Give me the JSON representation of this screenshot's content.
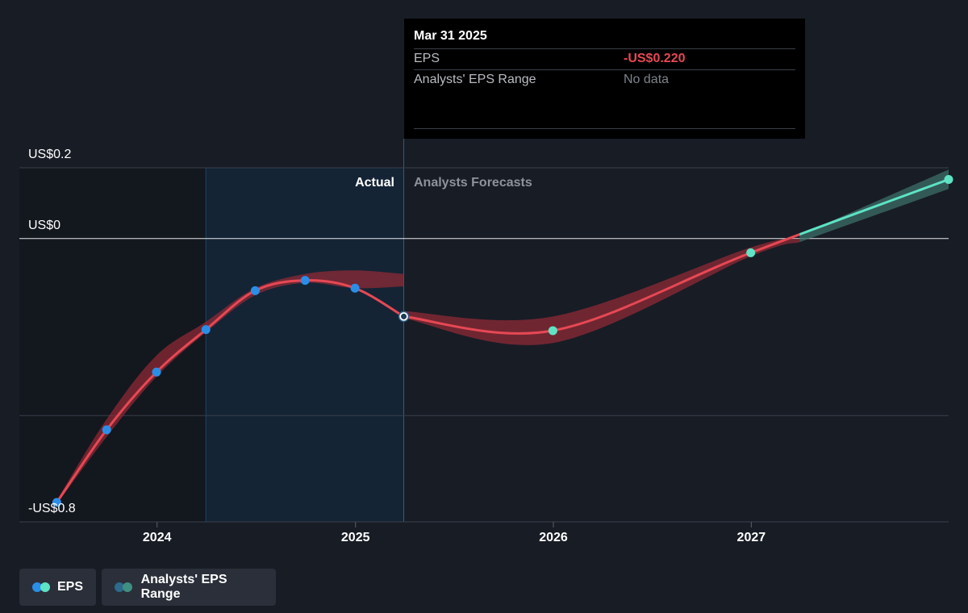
{
  "tooltip": {
    "date": "Mar 31 2025",
    "rows": [
      {
        "label": "EPS",
        "value": "-US$0.220"
      },
      {
        "label": "Analysts' EPS Range",
        "value": "No data"
      }
    ]
  },
  "legend": {
    "items": [
      {
        "label": "EPS",
        "colors": [
          "#2b8ee6",
          "#5ee3c4"
        ]
      },
      {
        "label": "Analysts' EPS Range",
        "colors": [
          "#2d6a8c",
          "#3f8f82"
        ]
      }
    ]
  },
  "colors": {
    "background": "#181c25",
    "actual_line": "#e64854",
    "forecast_line": "#5ee3c4",
    "actual_dot": "#2b8ee6",
    "forecast_dot": "#5ee3c4",
    "actual_band": "#8e2a36",
    "forecast_band": "#3c6e68",
    "highlight_region": "#142536"
  },
  "chart_data": {
    "type": "line",
    "section_labels": {
      "actual": "Actual",
      "forecast": "Analysts Forecasts"
    },
    "y_tick_labels": [
      {
        "value": 0.2,
        "label": "US$0.2"
      },
      {
        "value": 0,
        "label": "US$0"
      },
      {
        "value": -0.8,
        "label": "-US$0.8"
      }
    ],
    "x_tick_labels": [
      {
        "value": "2024-01-01",
        "label": "2024"
      },
      {
        "value": "2025-01-01",
        "label": "2025"
      },
      {
        "value": "2026-01-01",
        "label": "2026"
      },
      {
        "value": "2027-01-01",
        "label": "2027"
      }
    ],
    "x_range": [
      "2023-04-22",
      "2027-12-31"
    ],
    "y_range": [
      -0.8,
      0.2
    ],
    "grid_lines": [
      0.2,
      0,
      -0.5
    ],
    "highlight_region": [
      "2024-03-31",
      "2025-03-31"
    ],
    "cursor_date": "2025-03-31",
    "series": [
      {
        "name": "EPS",
        "kind": "actual",
        "x": [
          "2023-06-30",
          "2023-09-30",
          "2023-12-31",
          "2024-03-31",
          "2024-06-30",
          "2024-09-30",
          "2024-12-31",
          "2025-03-31"
        ],
        "y": [
          -0.745,
          -0.54,
          -0.377,
          -0.257,
          -0.147,
          -0.118,
          -0.14,
          -0.22
        ]
      },
      {
        "name": "EPS",
        "kind": "forecast",
        "x": [
          "2025-03-31",
          "2025-12-31",
          "2026-12-31",
          "2027-12-31"
        ],
        "y": [
          -0.22,
          -0.26,
          -0.04,
          0.167
        ]
      }
    ],
    "range_bands": [
      {
        "kind": "actual",
        "x": [
          "2023-06-30",
          "2023-09-30",
          "2023-12-31",
          "2024-03-31",
          "2024-06-30",
          "2024-09-30",
          "2024-12-31",
          "2025-03-31"
        ],
        "upper": [
          -0.74,
          -0.51,
          -0.33,
          -0.235,
          -0.14,
          -0.1,
          -0.09,
          -0.1
        ],
        "lower": [
          -0.75,
          -0.56,
          -0.39,
          -0.265,
          -0.16,
          -0.125,
          -0.14,
          -0.135
        ]
      },
      {
        "kind": "actual",
        "x": [
          "2025-03-31",
          "2025-12-31",
          "2026-12-31",
          "2027-03-31"
        ],
        "upper": [
          -0.205,
          -0.22,
          -0.025,
          0.0
        ],
        "lower": [
          -0.225,
          -0.295,
          -0.05,
          -0.01
        ]
      },
      {
        "kind": "forecast",
        "x": [
          "2027-03-31",
          "2027-12-31"
        ],
        "upper": [
          0.01,
          0.195
        ],
        "lower": [
          -0.01,
          0.14
        ]
      }
    ]
  }
}
